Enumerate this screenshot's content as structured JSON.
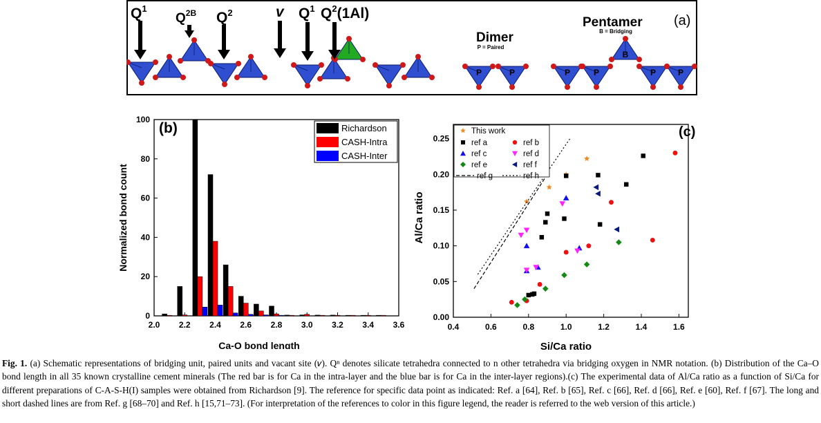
{
  "panel_a": {
    "letter": "(a)",
    "labels": {
      "q1": "Q",
      "q1_sup": "1",
      "q2b": "Q",
      "q2b_sup": "2B",
      "q2": "Q",
      "q2_sup": "2",
      "v": "v",
      "q1b": "Q",
      "q1b_sup": "1",
      "q2al": "Q",
      "q2al_sup": "2",
      "q2al_suffix": "(1Al)"
    },
    "dimer": {
      "title": "Dimer",
      "subtitle": "P = Paired",
      "p": "P"
    },
    "pentamer": {
      "title": "Pentamer",
      "subtitle": "B = Bridging",
      "b": "B",
      "p": "P"
    },
    "colors": {
      "tetra_si": "#2f4fd0",
      "tetra_al": "#22aa22",
      "oxygen": "#d01818"
    }
  },
  "chart_data": [
    {
      "type": "bar",
      "panel": "(b)",
      "xlabel": "Ca-O bond length",
      "ylabel": "Normalized bond count",
      "xlim": [
        2.0,
        3.6
      ],
      "ylim": [
        0,
        100
      ],
      "xticks": [
        "2.0",
        "2.2",
        "2.4",
        "2.6",
        "2.8",
        "3.0",
        "3.2",
        "3.4",
        "3.6"
      ],
      "yticks": [
        "0",
        "20",
        "40",
        "60",
        "80",
        "100"
      ],
      "categories": [
        2.1,
        2.2,
        2.3,
        2.4,
        2.5,
        2.6,
        2.7,
        2.8,
        2.9,
        3.0,
        3.1,
        3.2,
        3.3,
        3.4,
        3.5
      ],
      "legend_position": "top-right",
      "series": [
        {
          "name": "Richardson",
          "color": "#000000",
          "values": [
            1,
            15,
            100,
            72,
            26,
            10,
            6,
            5,
            0.4,
            0.5,
            0.4,
            0.4,
            0.3,
            0.3,
            0.3
          ]
        },
        {
          "name": "CASH-Intra",
          "color": "#ff0000",
          "values": [
            0.3,
            0.5,
            20,
            38,
            15,
            6.5,
            2.5,
            1,
            0.3,
            0.8,
            0.3,
            0.3,
            0.3,
            0.3,
            0.3
          ]
        },
        {
          "name": "CASH-Inter",
          "color": "#0000ff",
          "values": [
            0,
            0,
            4.5,
            5.5,
            1.5,
            0.8,
            0.5,
            0.3,
            0,
            0,
            0,
            0,
            0,
            0,
            0
          ]
        }
      ]
    },
    {
      "type": "scatter",
      "panel": "(c)",
      "xlabel": "Si/Ca ratio",
      "ylabel": "Al/Ca ratio",
      "xlim": [
        0.4,
        1.65
      ],
      "ylim": [
        0,
        0.27
      ],
      "xticks": [
        "0.4",
        "0.6",
        "0.8",
        "1.0",
        "1.2",
        "1.4",
        "1.6"
      ],
      "yticks": [
        "0.00",
        "0.05",
        "0.10",
        "0.15",
        "0.20",
        "0.25"
      ],
      "legend_position": "top-left",
      "series": [
        {
          "name": "This work",
          "marker": "star",
          "color": "#f08a24",
          "points": [
            [
              0.79,
              0.162
            ],
            [
              0.91,
              0.182
            ],
            [
              1.0,
              0.2
            ],
            [
              1.11,
              0.222
            ]
          ]
        },
        {
          "name": "ref a",
          "marker": "square",
          "color": "#000000",
          "points": [
            [
              0.8,
              0.031
            ],
            [
              0.82,
              0.032
            ],
            [
              0.83,
              0.033
            ],
            [
              0.87,
              0.112
            ],
            [
              0.89,
              0.133
            ],
            [
              0.9,
              0.145
            ],
            [
              0.99,
              0.138
            ],
            [
              1.0,
              0.198
            ],
            [
              1.17,
              0.199
            ],
            [
              1.18,
              0.13
            ],
            [
              1.32,
              0.186
            ],
            [
              1.41,
              0.226
            ]
          ]
        },
        {
          "name": "ref b",
          "color": "#ee1111",
          "marker": "circle",
          "points": [
            [
              0.71,
              0.021
            ],
            [
              0.79,
              0.023
            ],
            [
              0.86,
              0.046
            ],
            [
              1.0,
              0.091
            ],
            [
              1.12,
              0.1
            ],
            [
              1.24,
              0.161
            ],
            [
              1.46,
              0.108
            ],
            [
              1.58,
              0.23
            ]
          ]
        },
        {
          "name": "ref c",
          "marker": "triangle-up",
          "color": "#1111ee",
          "points": [
            [
              0.79,
              0.065
            ],
            [
              0.79,
              0.1
            ],
            [
              0.85,
              0.07
            ],
            [
              1.0,
              0.167
            ],
            [
              1.07,
              0.097
            ]
          ]
        },
        {
          "name": "ref d",
          "marker": "triangle-down",
          "color": "#ff22ff",
          "points": [
            [
              0.76,
              0.115
            ],
            [
              0.79,
              0.122
            ],
            [
              0.79,
              0.066
            ],
            [
              0.84,
              0.07
            ],
            [
              0.98,
              0.159
            ],
            [
              1.06,
              0.093
            ]
          ]
        },
        {
          "name": "ref e",
          "marker": "diamond",
          "color": "#138a13",
          "points": [
            [
              0.74,
              0.017
            ],
            [
              0.78,
              0.025
            ],
            [
              0.89,
              0.04
            ],
            [
              0.99,
              0.059
            ],
            [
              1.11,
              0.074
            ],
            [
              1.28,
              0.105
            ]
          ]
        },
        {
          "name": "ref f",
          "marker": "triangle-left",
          "color": "#0a1a7a",
          "points": [
            [
              1.16,
              0.182
            ],
            [
              1.17,
              0.173
            ],
            [
              1.27,
              0.123
            ]
          ]
        },
        {
          "name": "ref g",
          "marker": "dashed-line",
          "color": "#000000",
          "points": [
            [
              0.51,
              0.04
            ],
            [
              0.89,
              0.196
            ]
          ]
        },
        {
          "name": "ref h",
          "marker": "dotted-line",
          "color": "#000000",
          "points": [
            [
              0.53,
              0.06
            ],
            [
              1.02,
              0.25
            ]
          ]
        }
      ]
    }
  ],
  "caption": {
    "label": "Fig. 1.",
    "text": "(a) Schematic representations of bridging unit, paired units and vacant site (𝑣). Qⁿ denotes silicate tetrahedra connected to n other tetrahedra via bridging oxygen in NMR notation. (b) Distribution of the Ca–O bond length in all 35 known crystalline cement minerals (The red bar is for Ca in the intra-layer and the blue bar is for Ca in the inter-layer regions).(c) The experimental data of Al/Ca ratio as a function of Si/Ca for different preparations of C-A-S-H(I) samples were obtained from Richardson [9]. The reference for specific data point as indicated: Ref. a [64], Ref. b [65], Ref. c [66], Ref. d [66], Ref. e [60], Ref. f [67]. The long and short dashed lines are from Ref. g [68–70] and Ref. h [15,71–73]. (For interpretation of the references to color in this figure legend, the reader is referred to the web version of this article.)"
  }
}
